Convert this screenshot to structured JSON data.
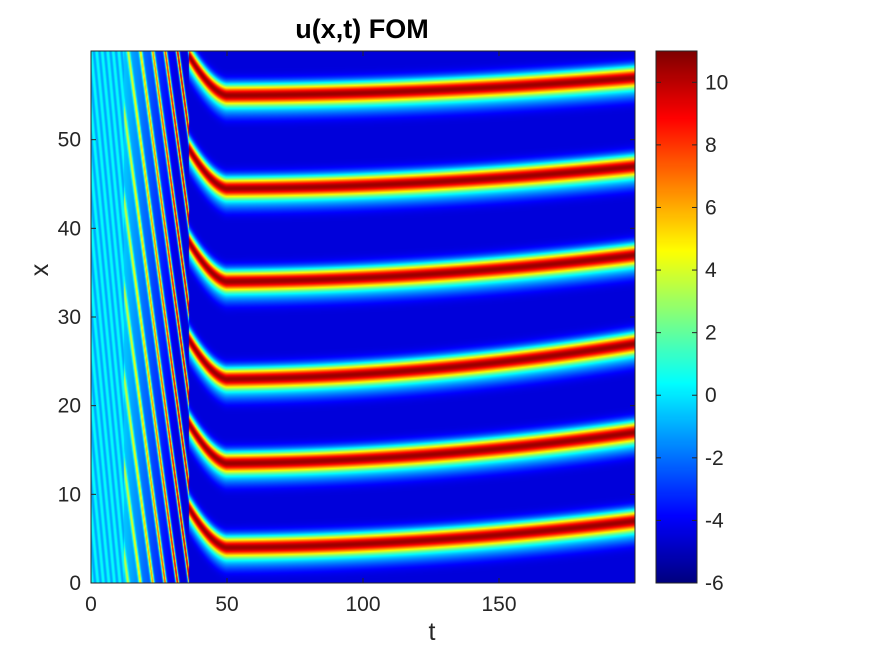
{
  "chart_data": {
    "type": "heatmap",
    "title": "u(x,t) FOM",
    "xlabel": "t",
    "ylabel": "x",
    "xlim": [
      0,
      200
    ],
    "ylim": [
      0,
      60
    ],
    "xticks": [
      0,
      50,
      100,
      150
    ],
    "yticks": [
      0,
      10,
      20,
      30,
      40,
      50
    ],
    "colormap": "jet",
    "clim": [
      -6,
      11
    ],
    "colorbar_ticks": [
      -6,
      -4,
      -2,
      0,
      2,
      4,
      6,
      8,
      10
    ],
    "colorbar_location": "right",
    "grid": false,
    "stripe_centers_x_at_t200": [
      7,
      17,
      27,
      37,
      47,
      57
    ],
    "stripe_centers_x_at_t50": [
      4,
      13.5,
      23,
      34,
      44.5,
      55
    ],
    "stripe_formation_t": 38,
    "background_value": -4.5,
    "stripe_peak_value": 10.5
  }
}
